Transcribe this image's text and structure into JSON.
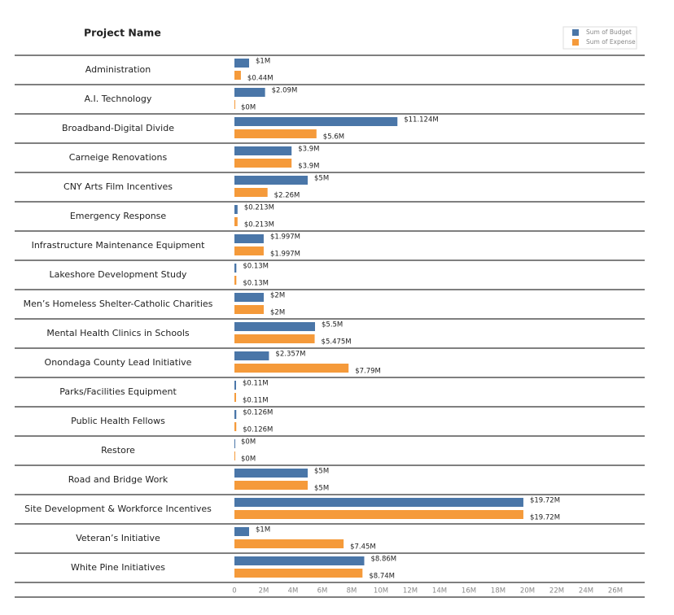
{
  "chart_data": {
    "type": "bar",
    "orientation": "horizontal",
    "category_axis_label": "Project Name",
    "categories": [
      "Administration",
      "A.I. Technology",
      "Broadband-Digital Divide",
      "Carneige Renovations",
      "CNY Arts Film Incentives",
      "Emergency Response",
      "Infrastructure Maintenance Equipment",
      "Lakeshore Development Study",
      "Men’s Homeless Shelter-Catholic Charities",
      "Mental Health Clinics in Schools",
      "Onondaga County Lead Initiative",
      "Parks/Facilities Equipment",
      "Public Health Fellows",
      "Restore",
      "Road and Bridge Work",
      "Site Development & Workforce Incentives",
      "Veteran’s Initiative",
      "White Pine Initiatives"
    ],
    "series": [
      {
        "name": "Sum of Budget",
        "color": "#4a76a8",
        "values": [
          1,
          2.09,
          11.124,
          3.9,
          5,
          0.213,
          1.997,
          0.13,
          2,
          5.5,
          2.357,
          0.11,
          0.126,
          0,
          5,
          19.72,
          1,
          8.86
        ],
        "value_labels": [
          "$1M",
          "$2.09M",
          "$11.124M",
          "$3.9M",
          "$5M",
          "$0.213M",
          "$1.997M",
          "$0.13M",
          "$2M",
          "$5.5M",
          "$2.357M",
          "$0.11M",
          "$0.126M",
          "$0M",
          "$5M",
          "$19.72M",
          "$1M",
          "$8.86M"
        ]
      },
      {
        "name": "Sum of Expense",
        "color": "#f59a3a",
        "values": [
          0.44,
          0,
          5.6,
          3.9,
          2.26,
          0.213,
          1.997,
          0.13,
          2,
          5.475,
          7.79,
          0.11,
          0.126,
          0,
          5,
          19.72,
          7.45,
          8.74
        ],
        "value_labels": [
          "$0.44M",
          "$0M",
          "$5.6M",
          "$3.9M",
          "$2.26M",
          "$0.213M",
          "$1.997M",
          "$0.13M",
          "$2M",
          "$5.475M",
          "$7.79M",
          "$0.11M",
          "$0.126M",
          "$0M",
          "$5M",
          "$19.72M",
          "$7.45M",
          "$8.74M"
        ]
      }
    ],
    "xlim": [
      0,
      28
    ],
    "xticks": [
      0,
      {
        "value": 2,
        "label": "2M"
      },
      {
        "value": 4,
        "label": "4M"
      },
      {
        "value": 6,
        "label": "6M"
      },
      {
        "value": 8,
        "label": "8M"
      },
      {
        "value": 10,
        "label": "10M"
      },
      {
        "value": 12,
        "label": "12M"
      },
      {
        "value": 14,
        "label": "14M"
      },
      {
        "value": 16,
        "label": "16M"
      },
      {
        "value": 18,
        "label": "18M"
      },
      {
        "value": 20,
        "label": "20M"
      },
      {
        "value": 22,
        "label": "22M"
      },
      {
        "value": 24,
        "label": "24M"
      },
      {
        "value": 26,
        "label": "26M"
      }
    ],
    "legend": "top-right",
    "grid": false
  }
}
